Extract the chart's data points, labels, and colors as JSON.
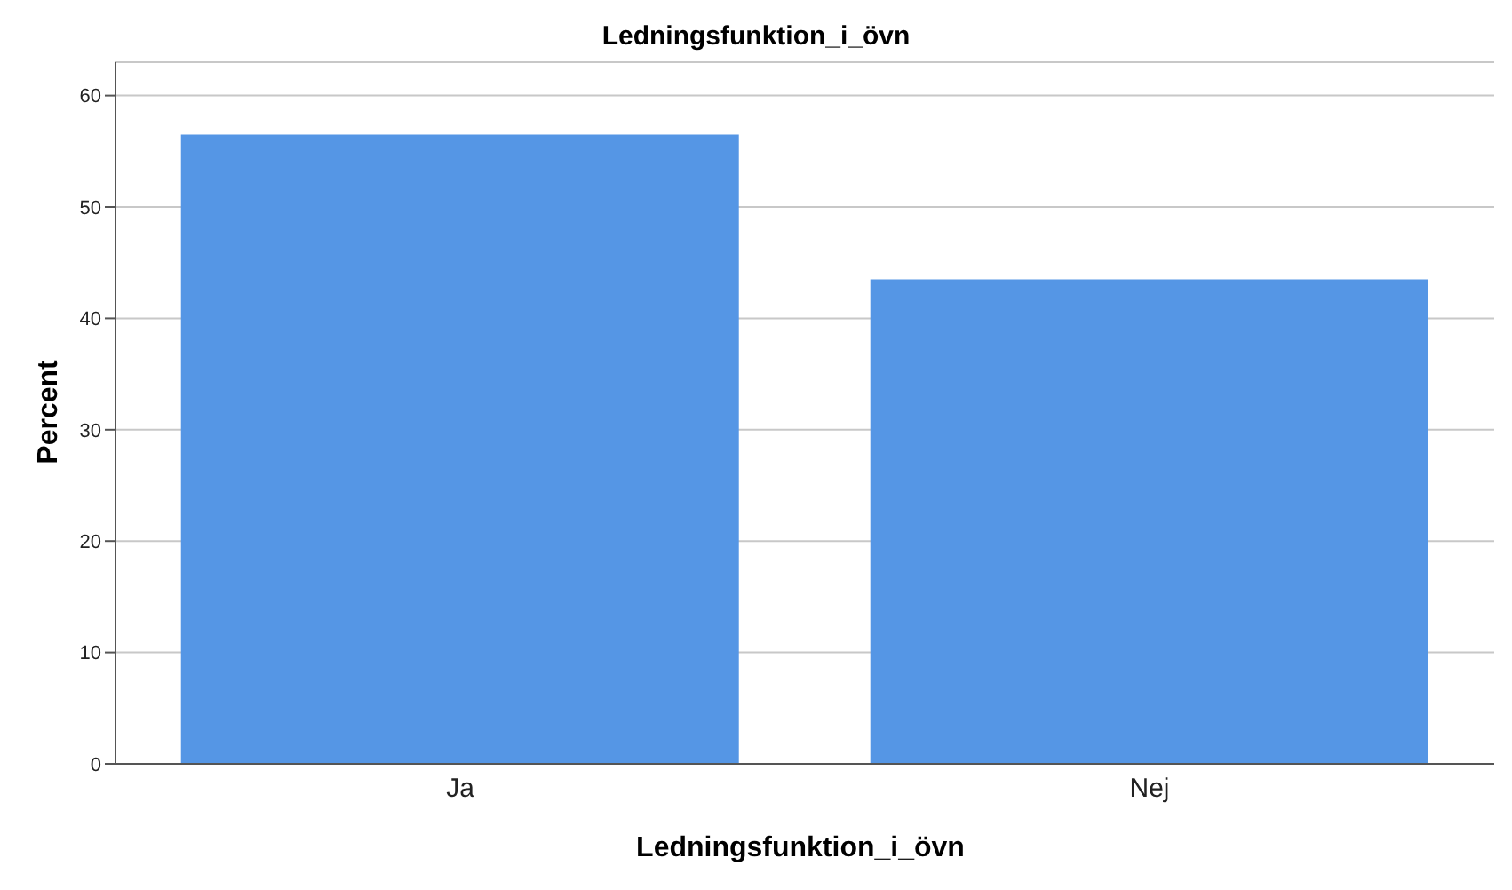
{
  "chart_data": {
    "type": "bar",
    "title": "Ledningsfunktion_i_övn",
    "xlabel": "Ledningsfunktion_i_övn",
    "ylabel": "Percent",
    "categories": [
      "Ja",
      "Nej"
    ],
    "values": [
      56.5,
      43.5
    ],
    "color": "#5596e5",
    "ylim": [
      0,
      63
    ],
    "yticks": [
      0,
      10,
      20,
      30,
      40,
      50,
      60
    ],
    "grid": "y"
  }
}
